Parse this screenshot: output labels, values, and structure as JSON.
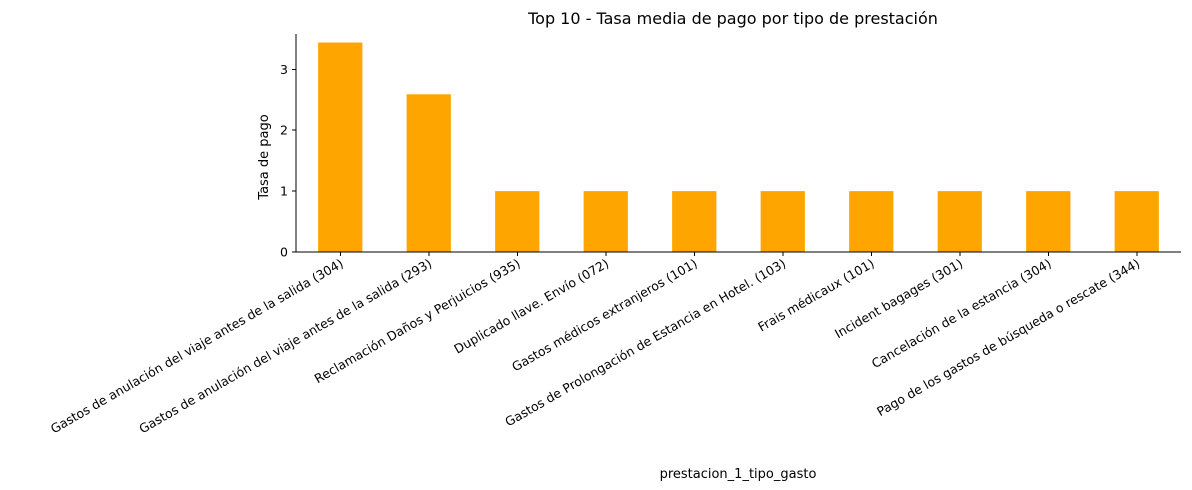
{
  "chart_data": {
    "type": "bar",
    "title": "Top 10 - Tasa media de pago por tipo de prestación",
    "xlabel": "prestacion_1_tipo_gasto",
    "ylabel": "Tasa de pago",
    "ylim": [
      0,
      3.58
    ],
    "yticks": [
      0,
      1,
      2,
      3
    ],
    "ytick_labels": [
      "0",
      "1",
      "2",
      "3"
    ],
    "grid": false,
    "legend": false,
    "bar_color": "#ffa500",
    "categories": [
      "Gastos de anulación del viaje antes de la salida (304)",
      "Gastos de anulación del viaje antes de la salida (293)",
      "Reclamación Daños y Perjuicios (935)",
      "Duplicado llave. Envío (072)",
      "Gastos médicos extranjeros (101)",
      "Gastos de Prolongación de Estancia en Hotel. (103)",
      "Frais médicaux (101)",
      "Incident bagages (301)",
      "Cancelación de la estancia  (304)",
      "Pago de los gastos de búsqueda o rescate (344)"
    ],
    "values": [
      3.44,
      2.59,
      1,
      1,
      1,
      1,
      1,
      1,
      1,
      1
    ]
  }
}
